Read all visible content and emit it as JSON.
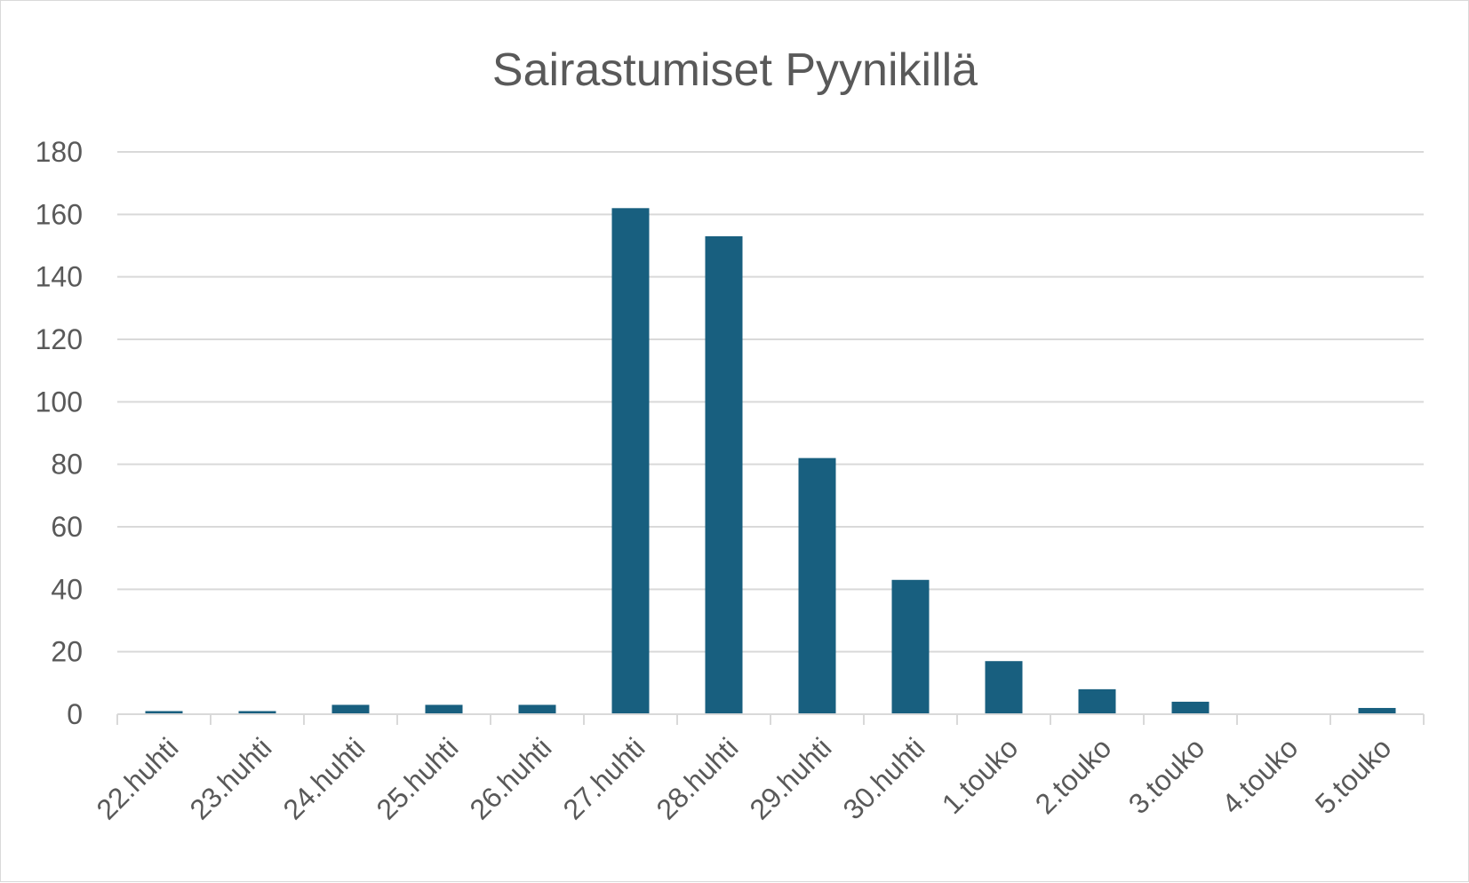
{
  "chart_data": {
    "type": "bar",
    "title": "Sairastumiset Pyynikillä",
    "xlabel": "",
    "ylabel": "",
    "categories": [
      "22.huhti",
      "23.huhti",
      "24.huhti",
      "25.huhti",
      "26.huhti",
      "27.huhti",
      "28.huhti",
      "29.huhti",
      "30.huhti",
      "1.touko",
      "2.touko",
      "3.touko",
      "4.touko",
      "5.touko"
    ],
    "values": [
      1,
      1,
      3,
      3,
      3,
      162,
      153,
      82,
      43,
      17,
      8,
      4,
      0,
      2
    ],
    "ylim": [
      0,
      180
    ],
    "yticks": [
      "0",
      "20",
      "40",
      "60",
      "80",
      "100",
      "120",
      "140",
      "160",
      "180"
    ],
    "grid": true,
    "legend": "none",
    "bar_color": "#185f7f",
    "grid_color": "#d9d9d9",
    "text_color": "#595959"
  }
}
